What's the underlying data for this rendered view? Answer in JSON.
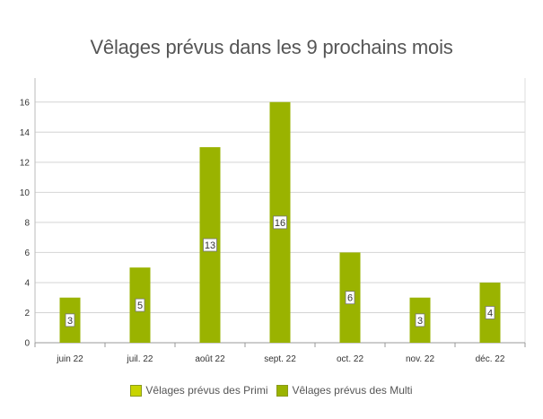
{
  "chart_data": {
    "type": "bar",
    "title": "Vêlages prévus dans les 9 prochains mois",
    "xlabel": "",
    "ylabel": "",
    "categories": [
      "juin 22",
      "juil. 22",
      "août 22",
      "sept. 22",
      "oct. 22",
      "nov. 22",
      "déc. 22"
    ],
    "series": [
      {
        "name": "Vêlages prévus des Primi",
        "color": "#c8d400",
        "values": [
          0,
          0,
          0,
          0,
          0,
          0,
          0
        ]
      },
      {
        "name": "Vêlages prévus des Multi",
        "color": "#9ab300",
        "values": [
          3,
          5,
          13,
          16,
          6,
          3,
          4
        ]
      }
    ],
    "data_labels": [
      "3",
      "5",
      "13",
      "16",
      "6",
      "3",
      "4"
    ],
    "ylim": [
      0,
      17
    ],
    "y_ticks": [
      "0",
      "2",
      "4",
      "6",
      "8",
      "10",
      "12",
      "14",
      "16"
    ],
    "grid": true,
    "legend_position": "bottom"
  }
}
